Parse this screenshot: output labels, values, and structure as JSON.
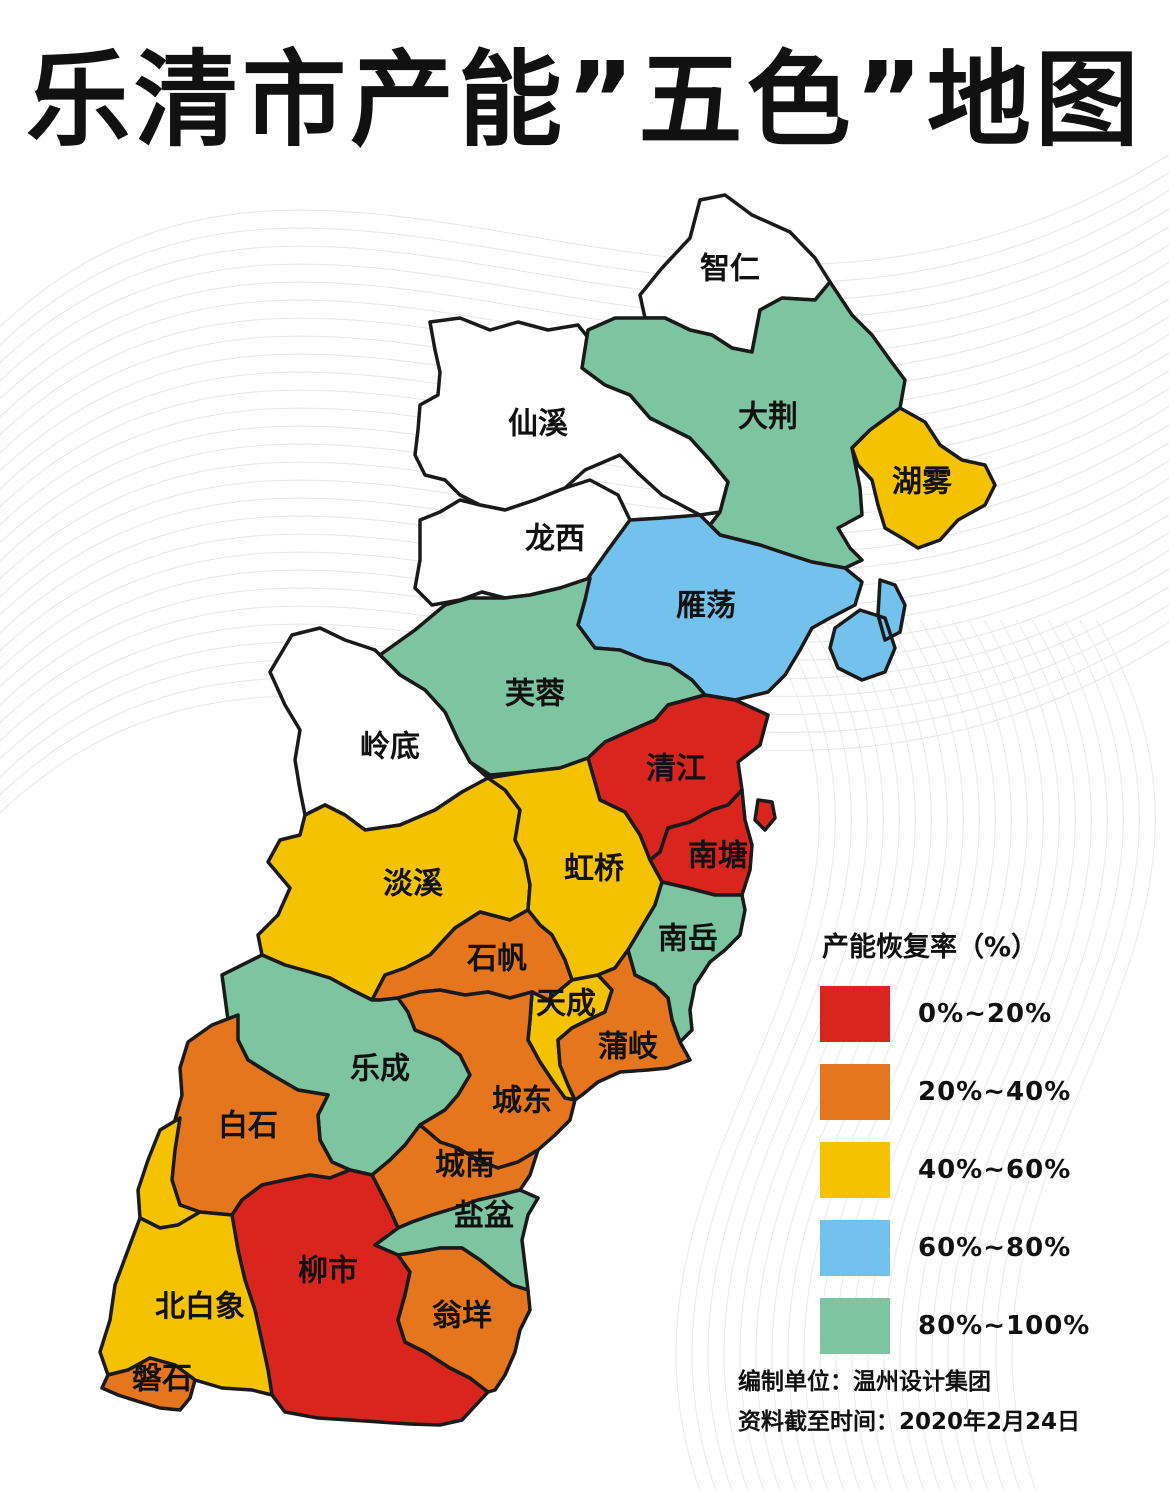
{
  "title": "乐清市产能”五色”地图",
  "colors": {
    "red": "#d9251d",
    "orange": "#e5761e",
    "yellow": "#f5c200",
    "blue": "#73c2ee",
    "green": "#7cc5a0",
    "white": "#ffffff"
  },
  "regions": [
    {
      "id": "zhiren",
      "name": "智仁",
      "color": "white"
    },
    {
      "id": "xianxi",
      "name": "仙溪",
      "color": "white"
    },
    {
      "id": "dajing",
      "name": "大荆",
      "color": "green"
    },
    {
      "id": "huwu",
      "name": "湖雾",
      "color": "yellow"
    },
    {
      "id": "longxi",
      "name": "龙西",
      "color": "white"
    },
    {
      "id": "yandang",
      "name": "雁荡",
      "color": "blue"
    },
    {
      "id": "furong",
      "name": "芙蓉",
      "color": "green"
    },
    {
      "id": "lingdi",
      "name": "岭底",
      "color": "white"
    },
    {
      "id": "qingjiang",
      "name": "清江",
      "color": "red"
    },
    {
      "id": "nantang",
      "name": "南塘",
      "color": "red"
    },
    {
      "id": "danxi",
      "name": "淡溪",
      "color": "yellow"
    },
    {
      "id": "hongqiao",
      "name": "虹桥",
      "color": "yellow"
    },
    {
      "id": "nanyue",
      "name": "南岳",
      "color": "green"
    },
    {
      "id": "shifan",
      "name": "石帆",
      "color": "orange"
    },
    {
      "id": "tiancheng",
      "name": "天成",
      "color": "yellow"
    },
    {
      "id": "puqi",
      "name": "蒲岐",
      "color": "orange"
    },
    {
      "id": "yuecheng",
      "name": "乐成",
      "color": "green"
    },
    {
      "id": "chengdong",
      "name": "城东",
      "color": "orange"
    },
    {
      "id": "baishi",
      "name": "白石",
      "color": "orange"
    },
    {
      "id": "chengnan",
      "name": "城南",
      "color": "orange"
    },
    {
      "id": "yanpen",
      "name": "盐盆",
      "color": "green"
    },
    {
      "id": "liushi",
      "name": "柳市",
      "color": "red"
    },
    {
      "id": "beibaixiang",
      "name": "北白象",
      "color": "yellow"
    },
    {
      "id": "wengyang",
      "name": "翁垟",
      "color": "orange"
    },
    {
      "id": "panshi",
      "name": "磐石",
      "color": "orange"
    }
  ],
  "legend": {
    "title": "产能恢复率（%）",
    "items": [
      {
        "label": "0%~20%",
        "color": "red"
      },
      {
        "label": "20%~40%",
        "color": "orange"
      },
      {
        "label": "40%~60%",
        "color": "yellow"
      },
      {
        "label": "60%~80%",
        "color": "blue"
      },
      {
        "label": "80%~100%",
        "color": "green"
      }
    ]
  },
  "credits": {
    "compiler": "编制单位：温州设计集团",
    "data_date": "资料截至时间：2020年2月24日"
  }
}
